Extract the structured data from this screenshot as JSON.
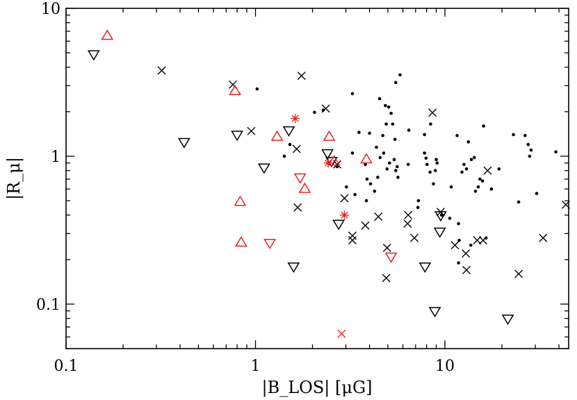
{
  "chart_data": {
    "type": "scatter",
    "xscale": "log",
    "yscale": "log",
    "xlim": [
      0.1,
      45
    ],
    "ylim": [
      0.05,
      10
    ],
    "xticks": [
      {
        "value": 0.1,
        "label": "0.1"
      },
      {
        "value": 1,
        "label": "1"
      },
      {
        "value": 10,
        "label": "10"
      }
    ],
    "yticks": [
      {
        "value": 0.1,
        "label": "0.1"
      },
      {
        "value": 1,
        "label": "1"
      },
      {
        "value": 10,
        "label": "10"
      }
    ],
    "xlabel": "|B_LOS| [μG]",
    "ylabel": "|R_μ|",
    "grid": false,
    "colors": {
      "black": "#000000",
      "red": "#e8201c"
    },
    "series": [
      {
        "marker": "dot",
        "color": "black",
        "points": [
          [
            1.02,
            2.85
          ],
          [
            1.42,
            1.0
          ],
          [
            1.52,
            1.2
          ],
          [
            2.05,
            1.98
          ],
          [
            2.28,
            2.05
          ],
          [
            2.7,
            0.85
          ],
          [
            3.02,
            0.62
          ],
          [
            3.25,
            1.05
          ],
          [
            3.25,
            2.65
          ],
          [
            3.35,
            0.55
          ],
          [
            3.52,
            1.45
          ],
          [
            3.8,
            0.88
          ],
          [
            3.85,
            0.5
          ],
          [
            3.88,
            0.7
          ],
          [
            4.0,
            1.43
          ],
          [
            4.05,
            0.65
          ],
          [
            4.25,
            0.58
          ],
          [
            4.35,
            1.15
          ],
          [
            4.42,
            0.72
          ],
          [
            4.52,
            2.45
          ],
          [
            4.55,
            0.98
          ],
          [
            4.7,
            1.38
          ],
          [
            4.75,
            1.05
          ],
          [
            4.85,
            2.2
          ],
          [
            4.9,
            1.65
          ],
          [
            4.95,
            0.82
          ],
          [
            5.05,
            2.15
          ],
          [
            5.1,
            0.9
          ],
          [
            5.2,
            1.95
          ],
          [
            5.3,
            1.65
          ],
          [
            5.4,
            0.95
          ],
          [
            5.45,
            1.3
          ],
          [
            5.5,
            0.8
          ],
          [
            5.5,
            3.15
          ],
          [
            5.6,
            0.85
          ],
          [
            5.65,
            0.72
          ],
          [
            5.8,
            3.55
          ],
          [
            6.4,
            0.88
          ],
          [
            6.45,
            1.5
          ],
          [
            7.2,
            0.45
          ],
          [
            7.25,
            0.5
          ],
          [
            7.8,
            1.4
          ],
          [
            7.8,
            1.05
          ],
          [
            7.95,
            0.97
          ],
          [
            8.05,
            0.88
          ],
          [
            8.35,
            0.78
          ],
          [
            8.4,
            1.65
          ],
          [
            8.7,
            0.65
          ],
          [
            8.9,
            0.8
          ],
          [
            9.0,
            0.95
          ],
          [
            9.1,
            0.9
          ],
          [
            9.6,
            0.4
          ],
          [
            10.6,
            0.38
          ],
          [
            10.8,
            0.62
          ],
          [
            11.6,
            1.38
          ],
          [
            11.8,
            0.35
          ],
          [
            11.8,
            0.19
          ],
          [
            11.9,
            0.27
          ],
          [
            12.3,
            0.78
          ],
          [
            12.6,
            0.88
          ],
          [
            13.0,
            0.82
          ],
          [
            13.3,
            1.25
          ],
          [
            13.7,
            0.25
          ],
          [
            13.8,
            0.95
          ],
          [
            14.3,
            0.98
          ],
          [
            14.5,
            0.58
          ],
          [
            15.0,
            0.62
          ],
          [
            15.3,
            0.7
          ],
          [
            15.8,
            0.68
          ],
          [
            16.0,
            1.6
          ],
          [
            16.5,
            0.28
          ],
          [
            17.6,
            0.6
          ],
          [
            19.3,
            0.82
          ],
          [
            23.0,
            1.4
          ],
          [
            24.5,
            0.49
          ],
          [
            26.5,
            1.38
          ],
          [
            27.5,
            1.2
          ],
          [
            28.0,
            1.0
          ],
          [
            28.5,
            1.1
          ],
          [
            30.5,
            0.56
          ],
          [
            38.5,
            1.07
          ]
        ]
      },
      {
        "marker": "x",
        "color": "black",
        "points": [
          [
            0.32,
            3.8
          ],
          [
            0.76,
            3.05
          ],
          [
            0.95,
            1.48
          ],
          [
            1.65,
            1.12
          ],
          [
            1.67,
            0.45
          ],
          [
            1.75,
            3.5
          ],
          [
            2.35,
            2.1
          ],
          [
            2.7,
            0.88
          ],
          [
            2.95,
            0.52
          ],
          [
            3.25,
            0.29
          ],
          [
            3.25,
            0.27
          ],
          [
            3.8,
            0.34
          ],
          [
            4.45,
            0.39
          ],
          [
            4.9,
            0.15
          ],
          [
            4.95,
            0.24
          ],
          [
            6.35,
            0.35
          ],
          [
            6.4,
            0.4
          ],
          [
            6.9,
            0.28
          ],
          [
            8.6,
            1.97
          ],
          [
            9.5,
            0.42
          ],
          [
            11.3,
            0.25
          ],
          [
            12.9,
            0.22
          ],
          [
            13.0,
            0.17
          ],
          [
            14.8,
            0.27
          ],
          [
            15.9,
            0.27
          ],
          [
            16.8,
            0.8
          ],
          [
            24.5,
            0.16
          ],
          [
            33.0,
            0.28
          ],
          [
            43.5,
            0.47
          ]
        ]
      },
      {
        "marker": "triangle-down",
        "color": "black",
        "points": [
          [
            0.14,
            4.9
          ],
          [
            0.42,
            1.25
          ],
          [
            0.8,
            1.4
          ],
          [
            1.11,
            0.84
          ],
          [
            1.5,
            1.5
          ],
          [
            1.59,
            0.18
          ],
          [
            2.4,
            1.05
          ],
          [
            2.52,
            0.93
          ],
          [
            2.75,
            0.35
          ],
          [
            7.85,
            0.18
          ],
          [
            8.85,
            0.09
          ],
          [
            9.5,
            0.4
          ],
          [
            9.4,
            0.31
          ],
          [
            21.5,
            0.08
          ]
        ]
      },
      {
        "marker": "triangle-up",
        "color": "red",
        "points": [
          [
            0.165,
            6.5
          ],
          [
            0.78,
            2.75
          ],
          [
            0.83,
            0.49
          ],
          [
            0.84,
            0.26
          ],
          [
            1.3,
            1.35
          ],
          [
            1.82,
            0.6
          ],
          [
            2.45,
            1.35
          ],
          [
            2.6,
            0.92
          ],
          [
            3.85,
            0.95
          ]
        ]
      },
      {
        "marker": "triangle-down",
        "color": "red",
        "points": [
          [
            1.19,
            0.26
          ],
          [
            1.72,
            0.72
          ],
          [
            5.2,
            0.21
          ]
        ]
      },
      {
        "marker": "asterisk",
        "color": "red",
        "points": [
          [
            1.62,
            1.8
          ],
          [
            2.42,
            0.9
          ],
          [
            2.95,
            0.4
          ]
        ]
      },
      {
        "marker": "x",
        "color": "red",
        "points": [
          [
            2.85,
            0.063
          ]
        ]
      }
    ]
  }
}
